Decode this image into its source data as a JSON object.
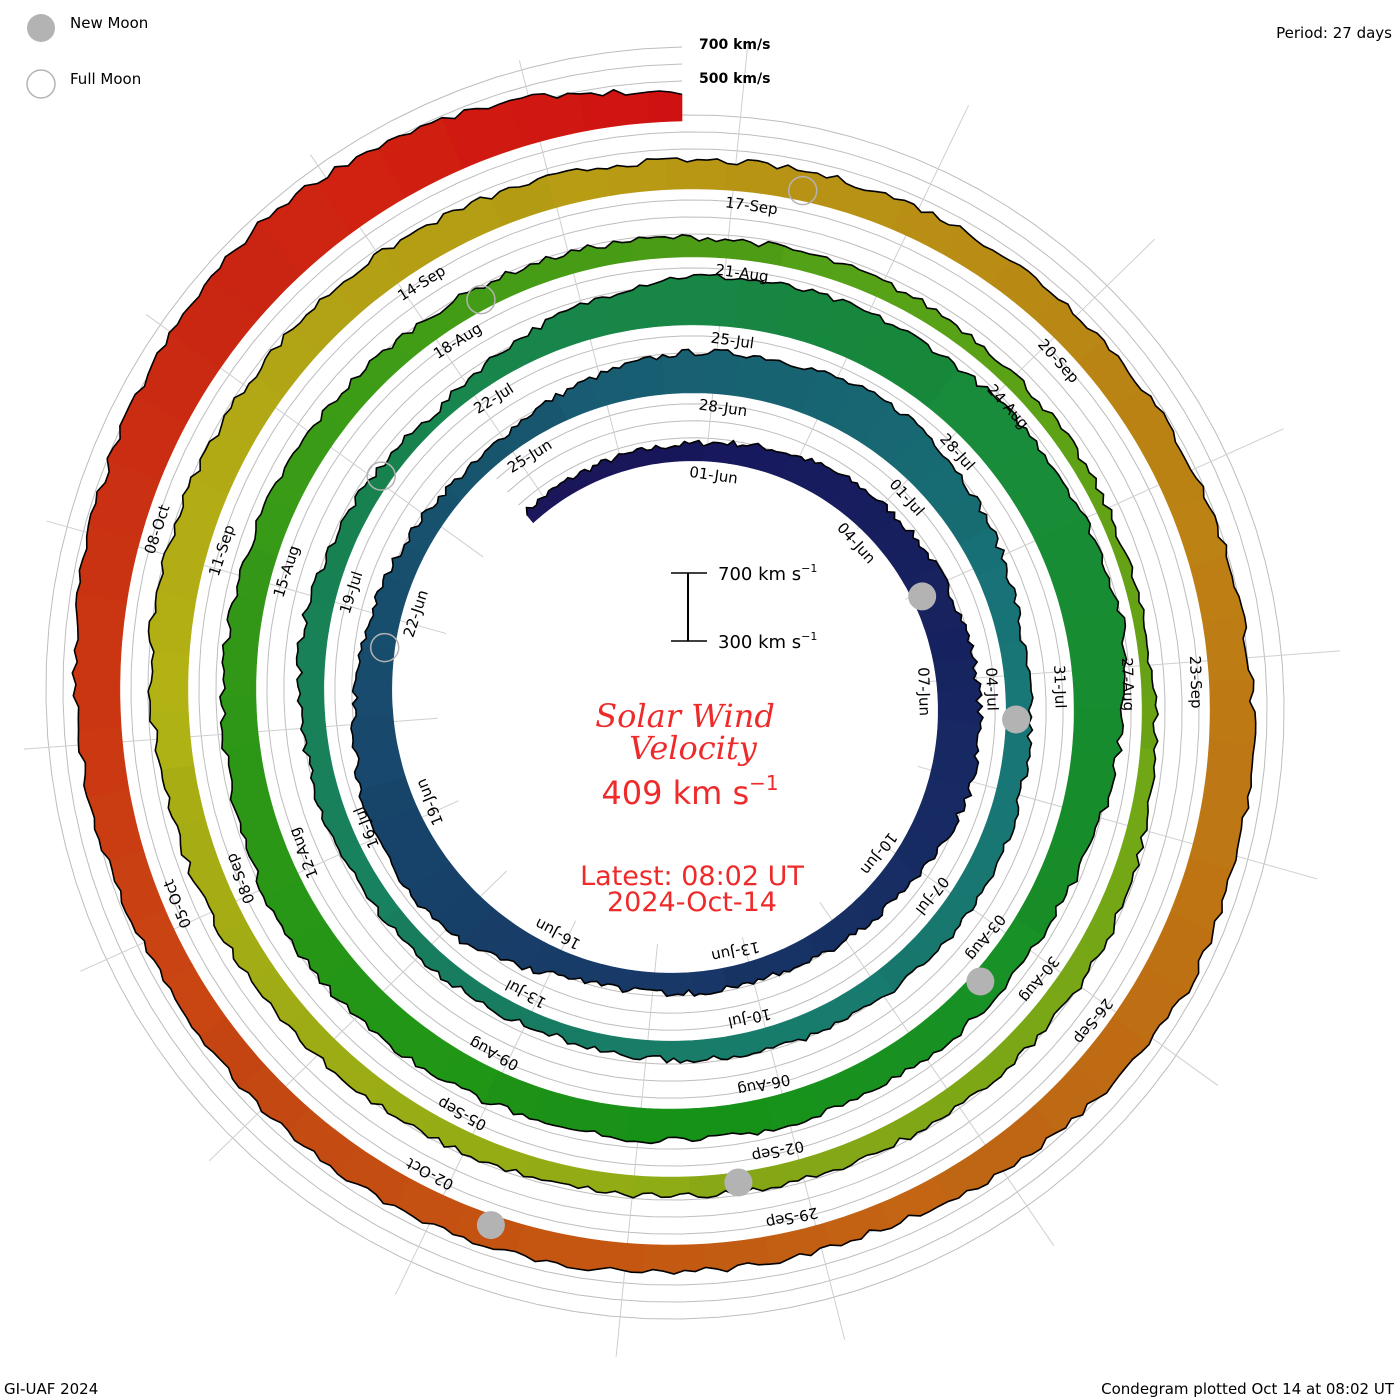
{
  "legend": {
    "new_moon": "New Moon",
    "full_moon": "Full Moon",
    "new_moon_color": "#b3b3b3",
    "full_moon_color": "#b3b3b3"
  },
  "period": "Period: 27 days",
  "scale_top": {
    "high": "700 km/s",
    "low": "500 km/s"
  },
  "scale_bar": {
    "high": "700 km s",
    "low": "300 km s",
    "exp": "−1"
  },
  "title": {
    "line1": "Solar Wind",
    "line2": "Velocity",
    "value": "409 km s",
    "exp": "−1",
    "latest": "Latest: 08:02 UT",
    "date": "2024-Oct-14",
    "color": "#ee2a2a"
  },
  "footer": {
    "left": "GI-UAF 2024",
    "right": "Condegram plotted Oct 14 at 08:02 UT"
  },
  "chart_data": {
    "type": "area",
    "title": "Solar Wind Velocity",
    "units": "km/s",
    "period_days": 27,
    "day0": "01-Jun",
    "samples": {
      "day_offset": [
        -3,
        0,
        3,
        6,
        8,
        10,
        12,
        15,
        17,
        19,
        21,
        24,
        27,
        30,
        33,
        36,
        39,
        42,
        45,
        48,
        51,
        54,
        57,
        60,
        63,
        66,
        69,
        72,
        75,
        78,
        81,
        84,
        87,
        90,
        93,
        96,
        99,
        102,
        105,
        108,
        111,
        114,
        117,
        120,
        123,
        126,
        129,
        132,
        133,
        134,
        135
      ],
      "speed": [
        340,
        360,
        450,
        500,
        520,
        420,
        390,
        380,
        560,
        540,
        450,
        350,
        500,
        550,
        400,
        420,
        400,
        350,
        380,
        420,
        330,
        550,
        560,
        600,
        450,
        450,
        450,
        500,
        450,
        400,
        380,
        350,
        320,
        400,
        380,
        380,
        420,
        500,
        470,
        430,
        450,
        500,
        550,
        400,
        450,
        450,
        550,
        650,
        600,
        520,
        409
      ]
    },
    "date_labels": [
      "01-Jun",
      "04-Jun",
      "07-Jun",
      "10-Jun",
      "13-Jun",
      "16-Jun",
      "19-Jun",
      "22-Jun",
      "25-Jun",
      "28-Jun",
      "01-Jul",
      "04-Jul",
      "07-Jul",
      "10-Jul",
      "13-Jul",
      "16-Jul",
      "19-Jul",
      "22-Jul",
      "25-Jul",
      "28-Jul",
      "31-Jul",
      "03-Aug",
      "06-Aug",
      "09-Aug",
      "12-Aug",
      "15-Aug",
      "18-Aug",
      "21-Aug",
      "24-Aug",
      "27-Aug",
      "30-Aug",
      "02-Sep",
      "05-Sep",
      "08-Sep",
      "11-Sep",
      "14-Sep",
      "17-Sep",
      "20-Sep",
      "23-Sep",
      "26-Sep",
      "29-Sep",
      "02-Oct",
      "05-Oct",
      "08-Oct"
    ],
    "new_moons_day_offset": [
      5,
      34,
      64,
      94,
      123
    ],
    "full_moons_day_offset": [
      21,
      50,
      79,
      109
    ],
    "grid_speeds": [
      300,
      400,
      500,
      600,
      700
    ]
  }
}
